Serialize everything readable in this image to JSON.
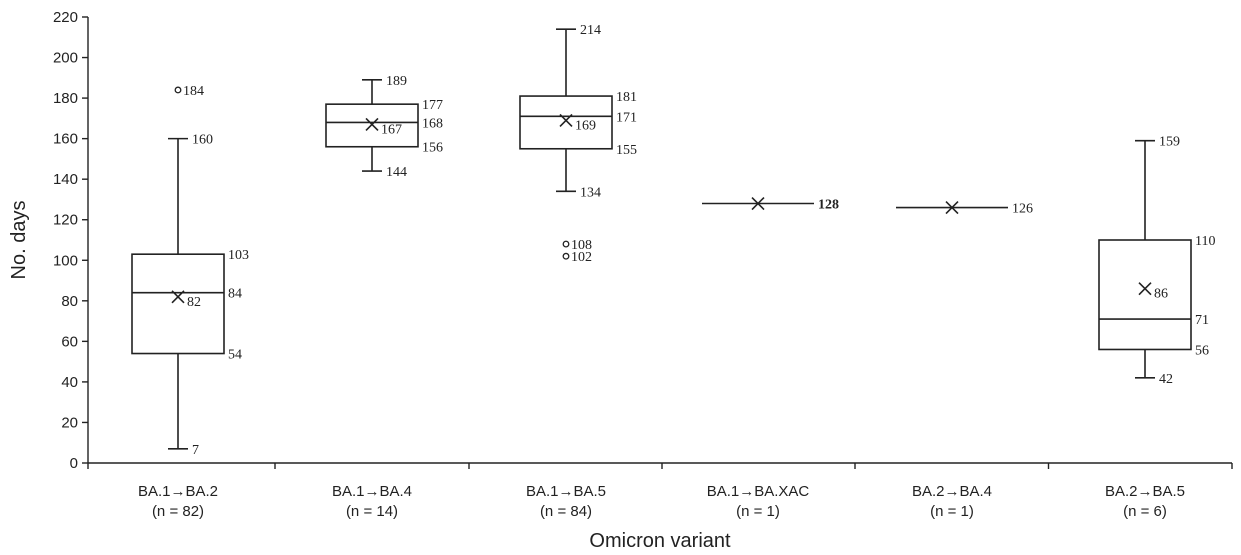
{
  "chart_data": {
    "type": "box",
    "xlabel": "Omicron variant",
    "ylabel": "No. days",
    "ylim": [
      0,
      220
    ],
    "yticks": [
      0,
      20,
      40,
      60,
      80,
      100,
      120,
      140,
      160,
      180,
      200,
      220
    ],
    "grid": false,
    "groups": [
      {
        "name": "BA.1→BA.2",
        "n_label": "(n = 82)",
        "min": 7,
        "q1": 54,
        "median": 84,
        "q3": 103,
        "max": 160,
        "mean": 82,
        "outliers": [
          184
        ],
        "single": false
      },
      {
        "name": "BA.1→BA.4",
        "n_label": "(n = 14)",
        "min": 144,
        "q1": 156,
        "median": 168,
        "q3": 177,
        "max": 189,
        "mean": 167,
        "outliers": [],
        "single": false
      },
      {
        "name": "BA.1→BA.5",
        "n_label": "(n = 84)",
        "min": 134,
        "q1": 155,
        "median": 171,
        "q3": 181,
        "max": 214,
        "mean": 169,
        "outliers": [
          108,
          102
        ],
        "single": false
      },
      {
        "name": "BA.1→BA.XAC",
        "n_label": "(n = 1)",
        "min": 128,
        "q1": 128,
        "median": 128,
        "q3": 128,
        "max": 128,
        "mean": 128,
        "outliers": [],
        "single": true
      },
      {
        "name": "BA.2→BA.4",
        "n_label": "(n = 1)",
        "min": 126,
        "q1": 126,
        "median": 126,
        "q3": 126,
        "max": 126,
        "mean": 126,
        "outliers": [],
        "single": true
      },
      {
        "name": "BA.2→BA.5",
        "n_label": "(n = 6)",
        "min": 42,
        "q1": 56,
        "median": 71,
        "q3": 110,
        "max": 159,
        "mean": 86,
        "outliers": [],
        "single": false
      }
    ]
  }
}
